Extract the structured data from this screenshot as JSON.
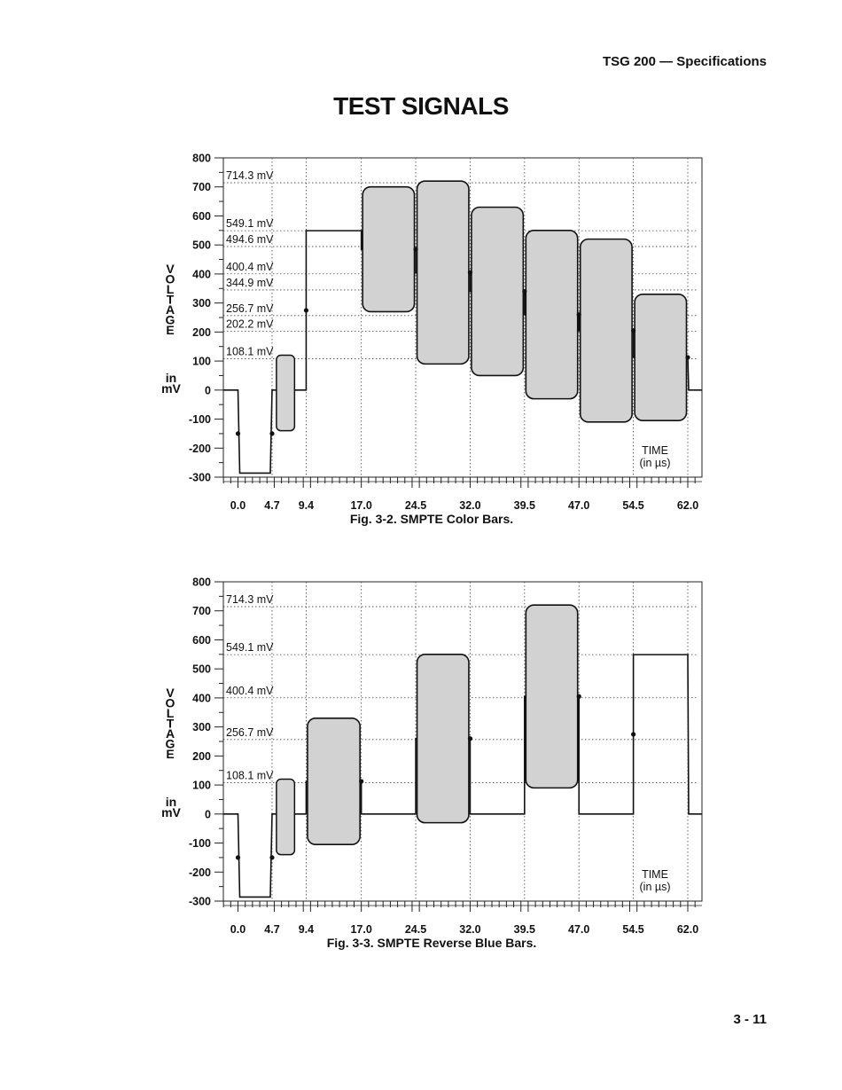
{
  "header": {
    "running_head": "TSG 200 — Specifications"
  },
  "page": {
    "title": "TEST SIGNALS",
    "page_number": "3 - 11"
  },
  "chart_data": [
    {
      "type": "line",
      "caption": "Fig. 3-2.  SMPTE Color Bars.",
      "ylabel_letters": [
        "V",
        "O",
        "L",
        "T",
        "A",
        "G",
        "E"
      ],
      "yunit_lines": [
        "in",
        "mV"
      ],
      "xlabel_lines": [
        "TIME",
        "(in µs)"
      ],
      "ylim": [
        -300,
        800
      ],
      "yticks": [
        800,
        700,
        600,
        500,
        400,
        300,
        200,
        100,
        0,
        -100,
        -200,
        -300
      ],
      "xticks": [
        "0.0",
        "4.7",
        "9.4",
        "17.0",
        "24.5",
        "32.0",
        "39.5",
        "47.0",
        "54.5",
        "62.0"
      ],
      "levels": [
        "714.3 mV",
        "549.1 mV",
        "494.6 mV",
        "400.4 mV",
        "344.9 mV",
        "256.7 mV",
        "202.2 mV",
        "108.1 mV"
      ],
      "waveform": {
        "sync": {
          "start": 0.0,
          "end": 4.7,
          "level": -286
        },
        "burst": {
          "start": 5.3,
          "end": 7.8,
          "low": -140,
          "high": 120
        },
        "bars": [
          {
            "start": 9.4,
            "end": 17.0,
            "type": "flat",
            "level": 549.1
          },
          {
            "start": 17.0,
            "end": 24.5,
            "type": "chroma",
            "high": 700,
            "low": 270
          },
          {
            "start": 24.5,
            "end": 32.0,
            "type": "chroma",
            "high": 720,
            "low": 90
          },
          {
            "start": 32.0,
            "end": 39.5,
            "type": "chroma",
            "high": 630,
            "low": 50
          },
          {
            "start": 39.5,
            "end": 47.0,
            "type": "chroma",
            "high": 550,
            "low": -30
          },
          {
            "start": 47.0,
            "end": 54.5,
            "type": "chroma",
            "high": 520,
            "low": -110
          },
          {
            "start": 54.5,
            "end": 62.0,
            "type": "chroma",
            "high": 330,
            "low": -105
          }
        ],
        "end_time": 63.5
      }
    },
    {
      "type": "line",
      "caption": "Fig. 3-3.  SMPTE Reverse Blue Bars.",
      "ylabel_letters": [
        "V",
        "O",
        "L",
        "T",
        "A",
        "G",
        "E"
      ],
      "yunit_lines": [
        "in",
        "mV"
      ],
      "xlabel_lines": [
        "TIME",
        "(in µs)"
      ],
      "ylim": [
        -300,
        800
      ],
      "yticks": [
        800,
        700,
        600,
        500,
        400,
        300,
        200,
        100,
        0,
        -100,
        -200,
        -300
      ],
      "xticks": [
        "0.0",
        "4.7",
        "9.4",
        "17.0",
        "24.5",
        "32.0",
        "39.5",
        "47.0",
        "54.5",
        "62.0"
      ],
      "levels": [
        "714.3 mV",
        "549.1 mV",
        "400.4 mV",
        "256.7 mV",
        "108.1 mV"
      ],
      "waveform": {
        "sync": {
          "start": 0.0,
          "end": 4.7,
          "level": -286
        },
        "burst": {
          "start": 5.3,
          "end": 7.8,
          "low": -140,
          "high": 120
        },
        "bars": [
          {
            "start": 9.4,
            "end": 17.0,
            "type": "chroma",
            "high": 330,
            "low": -105
          },
          {
            "start": 17.0,
            "end": 24.5,
            "type": "flat",
            "level": 0
          },
          {
            "start": 24.5,
            "end": 32.0,
            "type": "chroma",
            "high": 550,
            "low": -30
          },
          {
            "start": 32.0,
            "end": 39.5,
            "type": "flat",
            "level": 0
          },
          {
            "start": 39.5,
            "end": 47.0,
            "type": "chroma",
            "high": 720,
            "low": 90
          },
          {
            "start": 47.0,
            "end": 54.5,
            "type": "flat",
            "level": 0
          },
          {
            "start": 54.5,
            "end": 62.0,
            "type": "flat",
            "level": 549.1
          }
        ],
        "end_time": 63.5
      }
    }
  ]
}
